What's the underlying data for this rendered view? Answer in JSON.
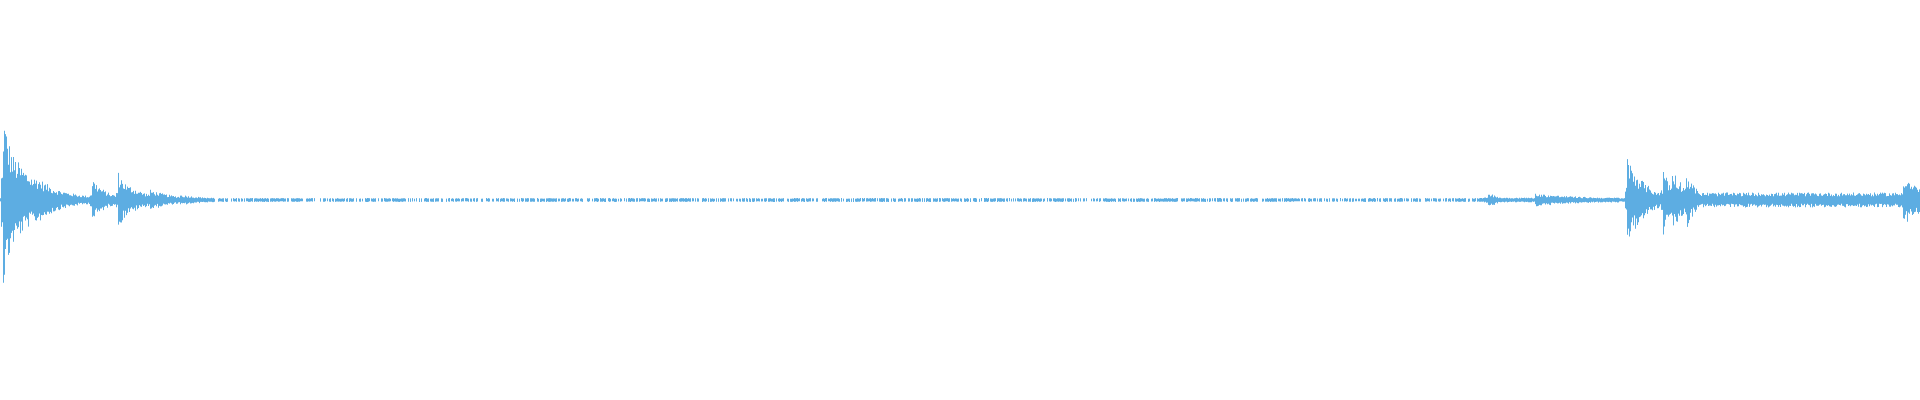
{
  "waveform": {
    "type": "audio-waveform",
    "color": "#5dade2",
    "background": "#ffffff"
  }
}
